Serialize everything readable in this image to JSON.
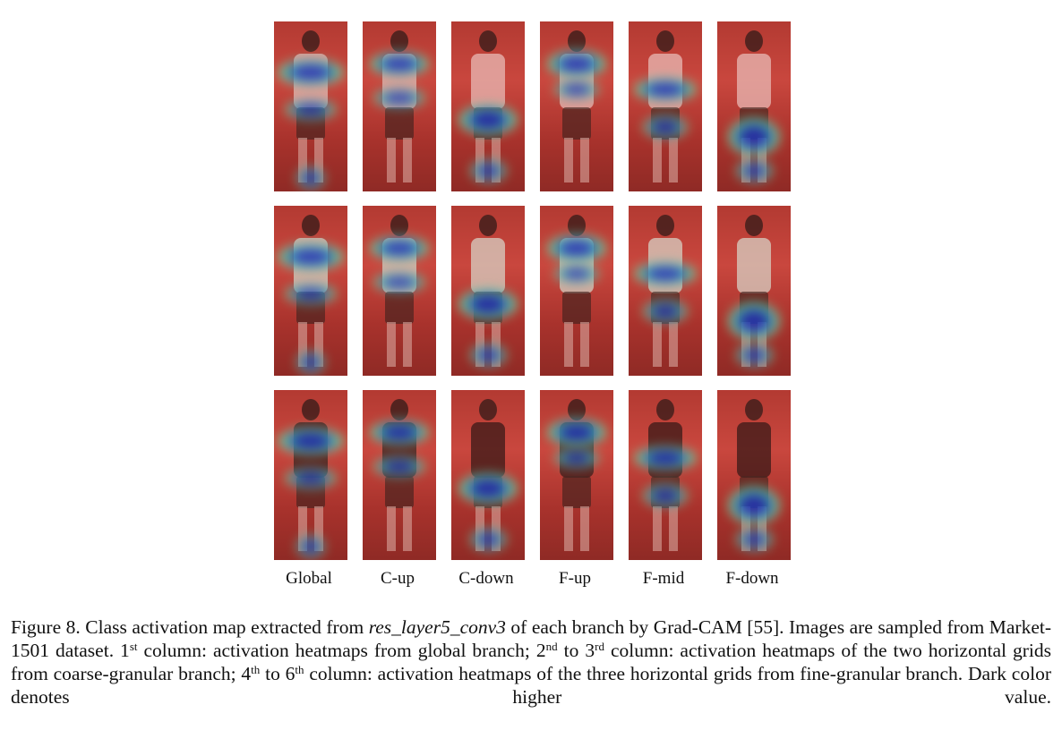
{
  "figure": {
    "column_labels": [
      "Global",
      "C-up",
      "C-down",
      "F-up",
      "F-mid",
      "F-down"
    ],
    "rows": 3,
    "colors": {
      "high": "#1e2fb5",
      "mid": "#33c7c1",
      "low": "#e7d24a",
      "background": "#b33a32"
    }
  },
  "caption": {
    "figure_number": "Figure 8.",
    "text_1": " Class activation map extracted from ",
    "layer_name": "res_layer5_conv3",
    "text_2": " of each branch by Grad-CAM [55]. Images are sampled from Market-1501 dataset. 1",
    "sup_1": "st",
    "text_3": " column: activation heatmaps from global branch; 2",
    "sup_2": "nd",
    "text_4": " to 3",
    "sup_3": "rd",
    "text_5": " column: activation heatmaps of the two horizontal grids from coarse-granular branch; 4",
    "sup_4": "th",
    "text_6": " to 6",
    "sup_5": "th",
    "text_7": " column: activation heatmaps of the three horizontal grids from fine-granular branch. Dark color denotes higher value."
  }
}
